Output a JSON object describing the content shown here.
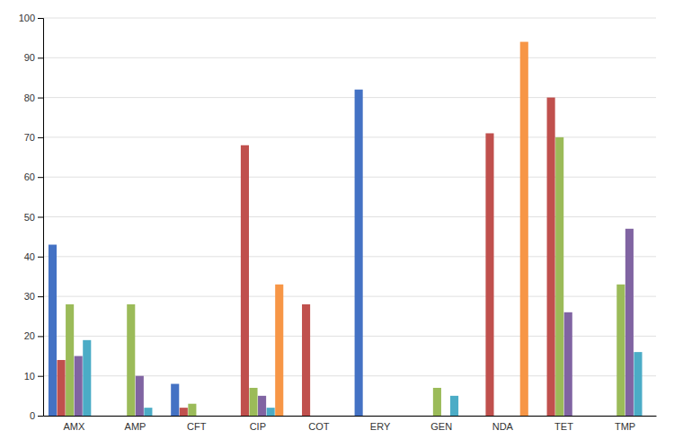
{
  "chart_data": {
    "type": "bar",
    "categories": [
      "AMX",
      "AMP",
      "CFT",
      "CIP",
      "COT",
      "ERY",
      "GEN",
      "NDA",
      "TET",
      "TMP"
    ],
    "series": [
      {
        "color": "#4472C4",
        "values": [
          43,
          0,
          8,
          0,
          0,
          82,
          0,
          0,
          0,
          0
        ]
      },
      {
        "color": "#C0504D",
        "values": [
          14,
          0,
          2,
          68,
          28,
          0,
          0,
          71,
          80,
          0
        ]
      },
      {
        "color": "#9BBB59",
        "values": [
          28,
          28,
          3,
          7,
          0,
          0,
          7,
          0,
          70,
          33
        ]
      },
      {
        "color": "#8064A2",
        "values": [
          15,
          10,
          0,
          5,
          0,
          0,
          0,
          0,
          26,
          47
        ]
      },
      {
        "color": "#4BACC6",
        "values": [
          19,
          2,
          0,
          2,
          0,
          0,
          5,
          0,
          0,
          16
        ]
      },
      {
        "color": "#F79646",
        "values": [
          0,
          0,
          0,
          33,
          0,
          0,
          0,
          94,
          0,
          0
        ]
      }
    ],
    "ylim": [
      0,
      100
    ],
    "yticks": [
      0,
      10,
      20,
      30,
      40,
      50,
      60,
      70,
      80,
      90,
      100
    ],
    "grid": true
  }
}
